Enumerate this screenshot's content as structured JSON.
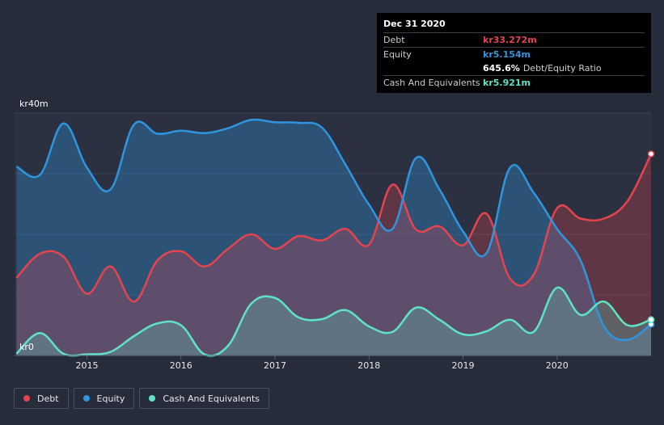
{
  "chart_data": {
    "type": "area",
    "y_axis_labels": {
      "top": "kr40m",
      "bottom": "kr0"
    },
    "ylim": [
      0,
      40
    ],
    "xlim": [
      2014.23,
      2021.0
    ],
    "x_ticks": [
      {
        "value": 2015,
        "label": "2015"
      },
      {
        "value": 2016,
        "label": "2016"
      },
      {
        "value": 2017,
        "label": "2017"
      },
      {
        "value": 2018,
        "label": "2018"
      },
      {
        "value": 2019,
        "label": "2019"
      },
      {
        "value": 2020,
        "label": "2020"
      }
    ],
    "grid": true,
    "legend_position": "bottom-left",
    "series": [
      {
        "name": "Debt",
        "color": "#e5444f",
        "x": [
          2014.25,
          2014.5,
          2014.75,
          2015.0,
          2015.25,
          2015.5,
          2015.75,
          2016.0,
          2016.25,
          2016.5,
          2016.75,
          2017.0,
          2017.25,
          2017.5,
          2017.75,
          2018.0,
          2018.25,
          2018.5,
          2018.75,
          2019.0,
          2019.25,
          2019.5,
          2019.75,
          2020.0,
          2020.25,
          2020.5,
          2020.75,
          2021.0
        ],
        "y": [
          12.8,
          16.8,
          16.3,
          10.2,
          14.7,
          8.9,
          15.7,
          17.2,
          14.7,
          17.6,
          20.0,
          17.6,
          19.7,
          19.0,
          20.9,
          18.3,
          28.2,
          20.8,
          21.3,
          18.2,
          23.4,
          12.7,
          13.3,
          24.3,
          22.6,
          22.6,
          25.5,
          33.272
        ]
      },
      {
        "name": "Equity",
        "color": "#2f95de",
        "x": [
          2014.25,
          2014.5,
          2014.75,
          2015.0,
          2015.25,
          2015.5,
          2015.75,
          2016.0,
          2016.25,
          2016.5,
          2016.75,
          2017.0,
          2017.25,
          2017.5,
          2017.75,
          2018.0,
          2018.25,
          2018.5,
          2018.75,
          2019.0,
          2019.25,
          2019.5,
          2019.75,
          2020.0,
          2020.25,
          2020.5,
          2020.75,
          2021.0
        ],
        "y": [
          31.2,
          29.8,
          38.3,
          31.0,
          27.4,
          38.1,
          36.6,
          37.1,
          36.7,
          37.5,
          38.9,
          38.5,
          38.4,
          37.6,
          31.5,
          24.9,
          20.9,
          32.6,
          27.4,
          20.5,
          16.9,
          31.0,
          26.9,
          20.9,
          15.7,
          4.8,
          2.6,
          5.154
        ]
      },
      {
        "name": "Cash And Equivalents",
        "color": "#5fe3c8",
        "x": [
          2014.25,
          2014.5,
          2014.75,
          2015.0,
          2015.25,
          2015.5,
          2015.75,
          2016.0,
          2016.25,
          2016.5,
          2016.75,
          2017.0,
          2017.25,
          2017.5,
          2017.75,
          2018.0,
          2018.25,
          2018.5,
          2018.75,
          2019.0,
          2019.25,
          2019.5,
          2019.75,
          2020.0,
          2020.25,
          2020.5,
          2020.75,
          2021.0
        ],
        "y": [
          0.3,
          3.7,
          0.3,
          0.2,
          0.6,
          3.2,
          5.3,
          5.0,
          0.2,
          1.6,
          8.6,
          9.5,
          6.3,
          6.0,
          7.5,
          4.8,
          3.9,
          7.9,
          5.9,
          3.5,
          4.0,
          5.9,
          3.9,
          11.2,
          6.7,
          8.9,
          5.0,
          5.921
        ]
      }
    ]
  },
  "tooltip": {
    "date": "Dec 31 2020",
    "rows": [
      {
        "label": "Debt",
        "value": "kr33.272m"
      },
      {
        "label": "Equity",
        "value": "kr5.154m"
      },
      {
        "label": "",
        "value": "645.6%",
        "suffix": "Debt/Equity Ratio"
      },
      {
        "label": "Cash And Equivalents",
        "value": "kr5.921m"
      }
    ]
  },
  "legend": [
    {
      "label": "Debt",
      "color": "#e5444f"
    },
    {
      "label": "Equity",
      "color": "#2f95de"
    },
    {
      "label": "Cash And Equivalents",
      "color": "#5fe3c8"
    }
  ]
}
